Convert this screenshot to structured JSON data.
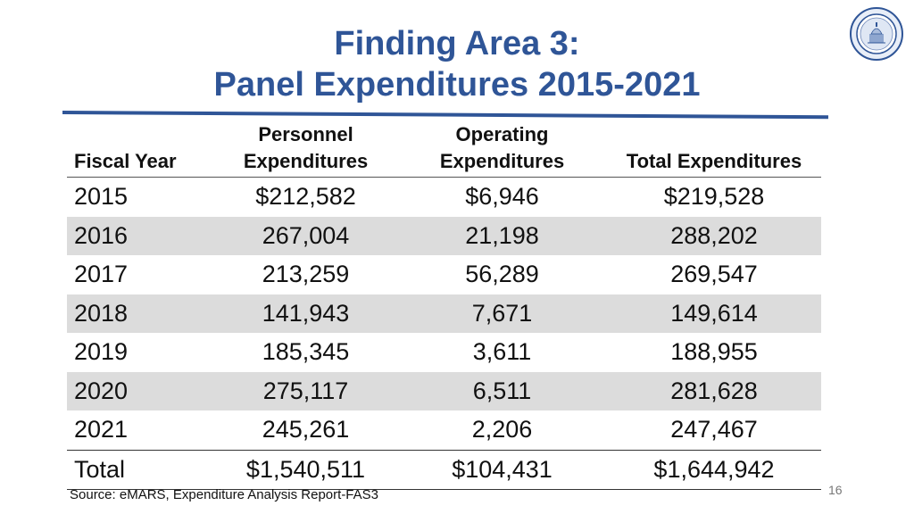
{
  "title": {
    "line1": "Finding Area 3:",
    "line2": "Panel Expenditures 2015-2021"
  },
  "table": {
    "headers": {
      "fiscal_year": "Fiscal Year",
      "personnel_line1": "Personnel",
      "personnel_line2": "Expenditures",
      "operating_line1": "Operating",
      "operating_line2": "Expenditures",
      "total": "Total Expenditures"
    },
    "rows": [
      {
        "year": "2015",
        "personnel": "$212,582",
        "operating": "$6,946",
        "total": "$219,528"
      },
      {
        "year": "2016",
        "personnel": "267,004",
        "operating": "21,198",
        "total": "288,202"
      },
      {
        "year": "2017",
        "personnel": "213,259",
        "operating": "56,289",
        "total": "269,547"
      },
      {
        "year": "2018",
        "personnel": "141,943",
        "operating": "7,671",
        "total": "149,614"
      },
      {
        "year": "2019",
        "personnel": "185,345",
        "operating": "3,611",
        "total": "188,955"
      },
      {
        "year": "2020",
        "personnel": "275,117",
        "operating": "6,511",
        "total": "281,628"
      },
      {
        "year": "2021",
        "personnel": "245,261",
        "operating": "2,206",
        "total": "247,467"
      }
    ],
    "total_row": {
      "label": "Total",
      "personnel": "$1,540,511",
      "operating": "$104,431",
      "total": "$1,644,942"
    }
  },
  "source": "Source: eMARS, Expenditure Analysis Report-FAS3",
  "page_number": "16",
  "colors": {
    "title": "#2f5597",
    "row_shade": "#dcdcdc"
  },
  "icons": {
    "seal": "state-seal-icon"
  }
}
